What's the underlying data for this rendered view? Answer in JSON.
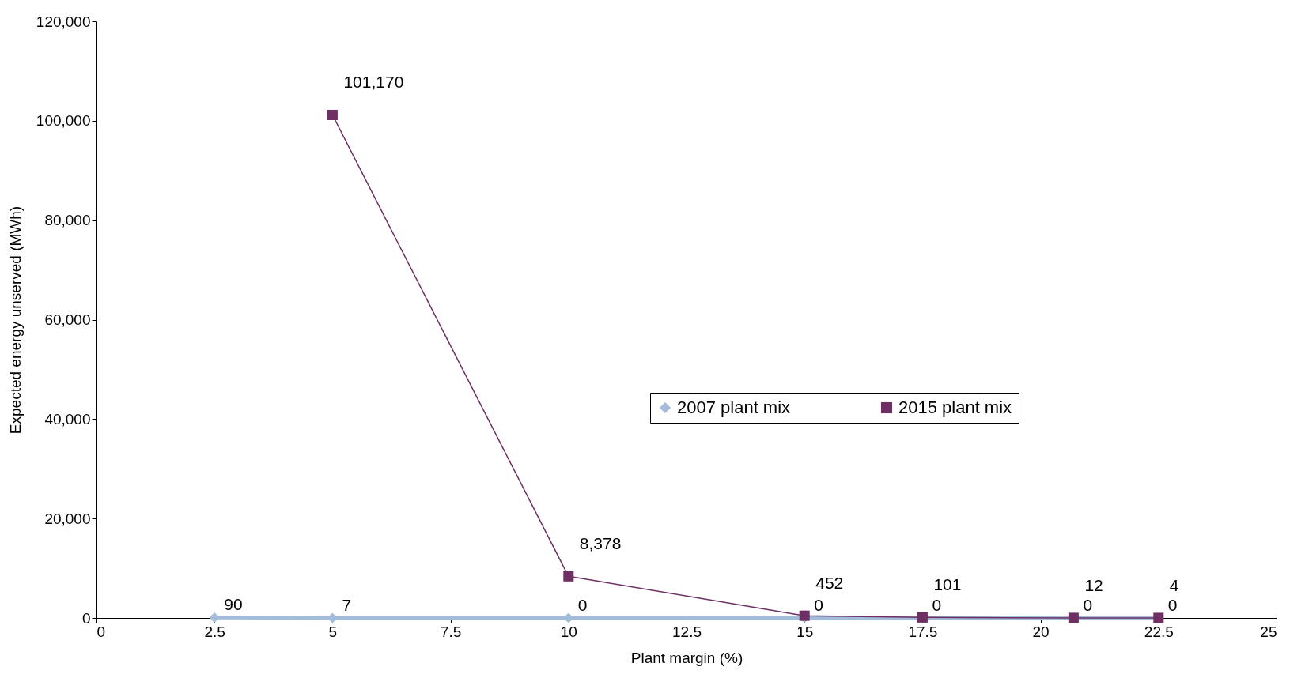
{
  "chart_data": {
    "type": "line",
    "xlabel": "Plant margin (%)",
    "ylabel": "Expected energy unserved (MWh)",
    "xlim": [
      0,
      25
    ],
    "xticks": [
      0,
      2.5,
      5,
      7.5,
      10,
      12.5,
      15,
      17.5,
      20,
      22.5,
      25
    ],
    "ylim": [
      0,
      120000
    ],
    "yticks": [
      0,
      {
        "value": 20000,
        "label": "20,000"
      },
      {
        "value": 40000,
        "label": "40,000"
      },
      {
        "value": 60000,
        "label": "60,000"
      },
      {
        "value": 80000,
        "label": "80,000"
      },
      {
        "value": 100000,
        "label": "100,000"
      },
      {
        "value": 120000,
        "label": "120,000"
      }
    ],
    "grid": false,
    "legend": "right",
    "series": [
      {
        "name": "2007 plant mix",
        "color": "#a3bcd9",
        "marker": "diamond",
        "x": [
          2.5,
          5,
          10,
          15,
          17.5,
          20.7,
          22.5
        ],
        "values": [
          90,
          7,
          0,
          0,
          0,
          0,
          0
        ],
        "value_labels": [
          "90",
          "7",
          "0",
          "0",
          "0",
          "0",
          "0"
        ]
      },
      {
        "name": "2015 plant mix",
        "color": "#6e2f63",
        "marker": "square",
        "x": [
          5,
          10,
          15,
          17.5,
          20.7,
          22.5
        ],
        "values": [
          101170,
          8378,
          452,
          101,
          12,
          4
        ],
        "value_labels": [
          "101,170",
          "8,378",
          "452",
          "101",
          "12",
          "4"
        ]
      }
    ]
  }
}
